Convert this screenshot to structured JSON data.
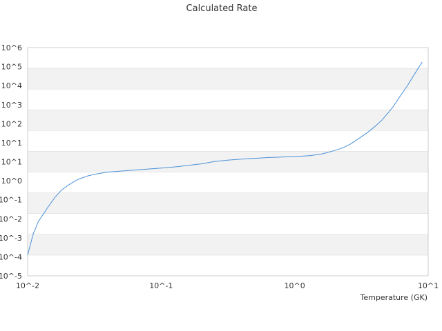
{
  "chart_data": {
    "type": "line",
    "title": "Calculated Rate",
    "xlabel": "Temperature (GK)",
    "ylabel": "",
    "x_scale": "log",
    "y_scale": "log",
    "xlim": [
      0.01,
      10
    ],
    "ylim": [
      1e-05,
      1000000
    ],
    "x_ticks": [
      "10^-2",
      "10^-1",
      "10^0",
      "10^1"
    ],
    "y_ticks": [
      "10^6",
      "10^5",
      "10^4",
      "10^3",
      "10^2",
      "10^1",
      "10^1",
      "10^0",
      "10^-1",
      "10^-2",
      "10^-3",
      "10^-4",
      "10^-5"
    ],
    "grid": "alternating horizontal bands",
    "colors": {
      "line": "#4a90d9",
      "band": "#f2f2f2",
      "gridline": "#dddddd",
      "axis": "#cccccc"
    },
    "series": [
      {
        "x": [
          0.01,
          0.011,
          0.012,
          0.014,
          0.016,
          0.018,
          0.021,
          0.024,
          0.028,
          0.033,
          0.04,
          0.05,
          0.063,
          0.08,
          0.1,
          0.13,
          0.16,
          0.2,
          0.25,
          0.32,
          0.4,
          0.5,
          0.63,
          0.8,
          1.0,
          1.3,
          1.6,
          2.0,
          2.3,
          2.6,
          3.0,
          3.5,
          4.0,
          4.5,
          5.0,
          5.5,
          6.0,
          7.0,
          8.0,
          9.0
        ],
        "y": [
          0.0001,
          0.001,
          0.004,
          0.018,
          0.06,
          0.14,
          0.28,
          0.45,
          0.65,
          0.82,
          1.0,
          1.12,
          1.25,
          1.4,
          1.55,
          1.8,
          2.1,
          2.5,
          3.2,
          3.8,
          4.2,
          4.6,
          5.0,
          5.3,
          5.6,
          6.2,
          7.5,
          11,
          15,
          22,
          40,
          80,
          160,
          320,
          700,
          1500,
          3500,
          15000,
          60000,
          200000
        ]
      }
    ]
  }
}
